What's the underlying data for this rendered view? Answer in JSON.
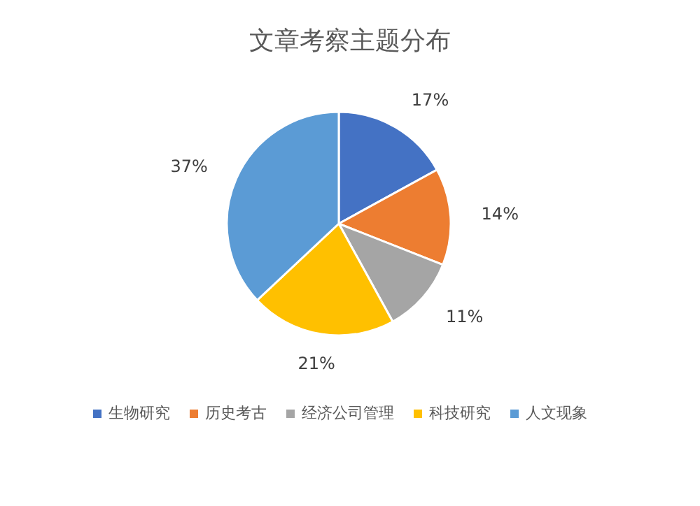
{
  "chart_data": {
    "type": "pie",
    "title": "文章考察主题分布",
    "categories": [
      "生物研究",
      "历史考古",
      "经济公司管理",
      "科技研究",
      "人文现象"
    ],
    "values": [
      17,
      14,
      11,
      21,
      37
    ],
    "colors": [
      "#4472c4",
      "#ed7d31",
      "#a5a5a5",
      "#ffc000",
      "#5b9bd5"
    ],
    "value_labels": [
      "17%",
      "14%",
      "11%",
      "21%",
      "37%"
    ],
    "legend": "bottom"
  }
}
